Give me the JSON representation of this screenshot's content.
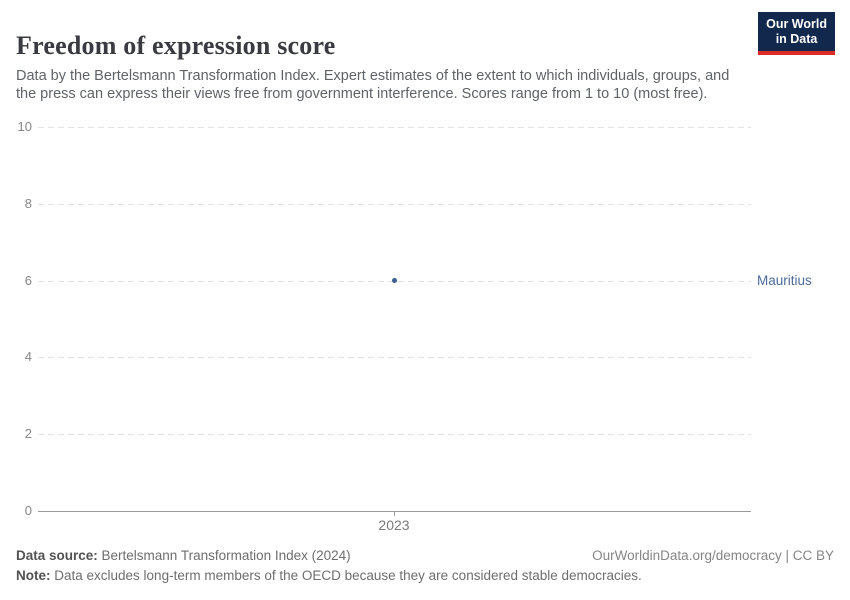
{
  "header": {
    "title": "Freedom of expression score",
    "subtitle": "Data by the Bertelsmann Transformation Index. Expert estimates of the extent to which individuals, groups, and the press can express their views free from government interference. Scores range from 1 to 10 (most free).",
    "logo": {
      "line1": "Our World",
      "line2": "in Data",
      "bg_color": "#12294d",
      "bar_color": "#dc2c27"
    }
  },
  "chart_data": {
    "type": "scatter",
    "title": "Freedom of expression score",
    "x": [
      2023
    ],
    "series": [
      {
        "name": "Mauritius",
        "values": [
          6
        ],
        "color": "#3d5c8f"
      }
    ],
    "xlabel": "",
    "ylabel": "",
    "ylim": [
      0,
      10
    ],
    "yticks": [
      0,
      2,
      4,
      6,
      8,
      10
    ],
    "xticks": [
      "2023"
    ],
    "grid": "horizontal-dashed",
    "entity_label": "Mauritius",
    "entity_label_color": "#4c6a9c",
    "gridline_color": "#e2e2e2",
    "axis_color": "#9a9a9a"
  },
  "footer": {
    "data_source_label": "Data source:",
    "data_source_value": " Bertelsmann Transformation Index (2024)",
    "note_label": "Note:",
    "note_value": " Data excludes long-term members of the OECD because they are considered stable democracies.",
    "attribution": "OurWorldinData.org/democracy | CC BY"
  }
}
